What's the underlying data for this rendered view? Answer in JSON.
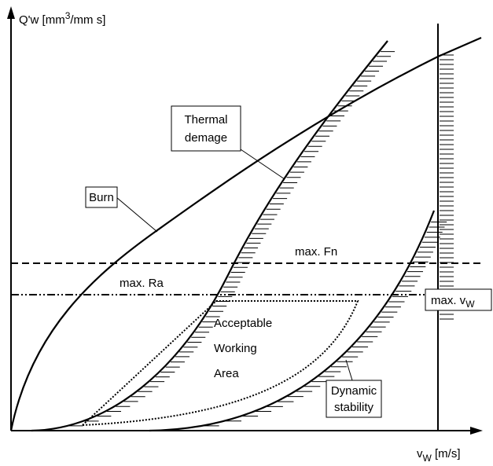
{
  "axes": {
    "y_label": [
      "Q'w [mm",
      "3",
      "/mm s]"
    ],
    "x_label": [
      "v",
      "W",
      " [m/s]"
    ]
  },
  "labels": {
    "thermal": [
      "Thermal",
      "demage"
    ],
    "burn": "Burn",
    "max_fn": "max. Fn",
    "max_ra": "max. Ra",
    "area": [
      "Acceptable",
      "Working",
      "Area"
    ],
    "max_vw": [
      "max. v",
      "W"
    ],
    "dynamic": [
      "Dynamic",
      "stability"
    ]
  }
}
